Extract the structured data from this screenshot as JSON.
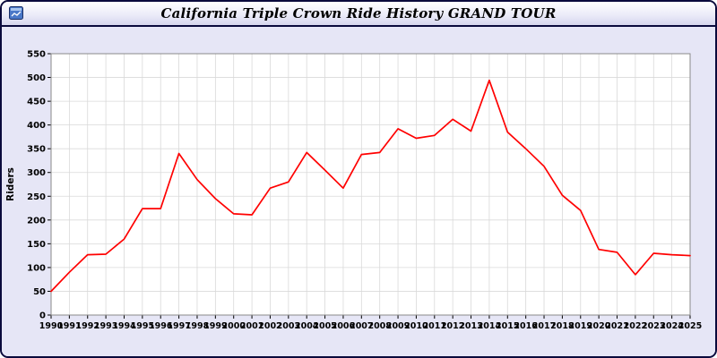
{
  "window": {
    "title": "California Triple Crown Ride History GRAND TOUR"
  },
  "colors": {
    "window_border": "#0a0a3c",
    "page_background": "#e6e6f6",
    "plot_background": "#ffffff",
    "grid_line": "#d9d9d9",
    "plot_border": "#8a8a8a",
    "series_line": "#ff0000",
    "tick_text": "#000000"
  },
  "chart_data": {
    "type": "line",
    "title": "California Triple Crown Ride History GRAND TOUR",
    "xlabel": "",
    "ylabel": "Riders",
    "ylim": [
      0,
      550
    ],
    "ytick_step": 50,
    "grid": true,
    "legend": "none",
    "series_name": "Riders",
    "line_color": "#ff0000",
    "x": [
      1990,
      1991,
      1992,
      1993,
      1994,
      1995,
      1996,
      1997,
      1998,
      1999,
      2000,
      2001,
      2002,
      2003,
      2004,
      2005,
      2006,
      2007,
      2008,
      2009,
      2010,
      2011,
      2012,
      2013,
      2014,
      2015,
      2016,
      2017,
      2018,
      2019,
      2020,
      2021,
      2022,
      2023,
      2024,
      2025
    ],
    "values": [
      50,
      90,
      127,
      128,
      160,
      224,
      224,
      340,
      285,
      245,
      213,
      211,
      267,
      280,
      342,
      305,
      267,
      338,
      342,
      392,
      372,
      378,
      412,
      387,
      494,
      385,
      350,
      313,
      252,
      220,
      138,
      132,
      85,
      130,
      127,
      125
    ]
  }
}
